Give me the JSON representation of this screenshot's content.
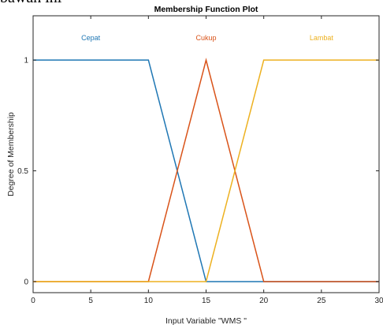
{
  "page_text": {
    "cropped_top": "bawah ini"
  },
  "chart_data": {
    "type": "line",
    "title": "Membership Function Plot",
    "xlabel": "Input Variable \"WMS \"",
    "ylabel": "Degree of Membership",
    "xlim": [
      0,
      30
    ],
    "ylim": [
      -0.05,
      1.2
    ],
    "x_ticks": [
      0,
      5,
      10,
      15,
      20,
      25,
      30
    ],
    "y_ticks": [
      0,
      0.5,
      1
    ],
    "y_tick_labels": [
      "0",
      "0.5",
      "1"
    ],
    "grid": false,
    "series": [
      {
        "name": "Cepat",
        "color": "#1f77b4",
        "x": [
          0,
          10,
          15,
          30
        ],
        "y": [
          1,
          1,
          0,
          0
        ],
        "label_x": 5
      },
      {
        "name": "Cukup",
        "color": "#d95319",
        "x": [
          0,
          10,
          15,
          20,
          30
        ],
        "y": [
          0,
          0,
          1,
          0,
          0
        ],
        "label_x": 15
      },
      {
        "name": "Lambat",
        "color": "#edb120",
        "x": [
          0,
          15,
          20,
          30
        ],
        "y": [
          0,
          0,
          1,
          1
        ],
        "label_x": 25
      }
    ],
    "label_y": 1.1
  }
}
